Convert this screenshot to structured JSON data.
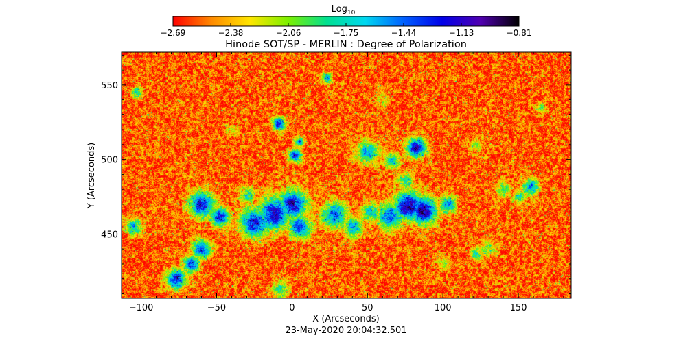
{
  "chart_data": {
    "type": "heatmap",
    "title": "Hinode SOT/SP - MERLIN : Degree of Polarization",
    "colorbar": {
      "label": "Log",
      "label_subscript": "10",
      "ticks": [
        "-2.69",
        "-2.38",
        "-2.06",
        "-1.75",
        "-1.44",
        "-1.13",
        "-0.81"
      ],
      "range": [
        -2.69,
        -0.81
      ],
      "colors": [
        "#ff0000",
        "#ff8a00",
        "#ffe600",
        "#7cf000",
        "#00e090",
        "#00d8f0",
        "#0060ff",
        "#0000e8",
        "#5000b0",
        "#000000"
      ]
    },
    "xlabel": "X (Arcseconds)",
    "ylabel": "Y (Arcseconds)",
    "xlim": [
      -113,
      185
    ],
    "ylim": [
      407,
      572
    ],
    "x_ticks": [
      -100,
      -50,
      0,
      50,
      100,
      150
    ],
    "y_ticks": [
      450,
      500,
      550
    ],
    "x_tick_labels": [
      "−100",
      "−50",
      "0",
      "50",
      "100",
      "150"
    ],
    "y_tick_labels": [
      "450",
      "500",
      "550"
    ],
    "grid": false,
    "timestamp": "23-May-2020 20:04:32.501",
    "field": {
      "background_level": -2.55,
      "regions": [
        {
          "x": -60,
          "y": 470,
          "r": 8,
          "peak": -1.25
        },
        {
          "x": -48,
          "y": 462,
          "r": 6,
          "peak": -1.3
        },
        {
          "x": -30,
          "y": 476,
          "r": 5,
          "peak": -1.8
        },
        {
          "x": -25,
          "y": 458,
          "r": 9,
          "peak": -1.2
        },
        {
          "x": -12,
          "y": 464,
          "r": 10,
          "peak": -1.1
        },
        {
          "x": 0,
          "y": 470,
          "r": 9,
          "peak": -1.15
        },
        {
          "x": 5,
          "y": 455,
          "r": 7,
          "peak": -1.3
        },
        {
          "x": 28,
          "y": 463,
          "r": 8,
          "peak": -1.4
        },
        {
          "x": 40,
          "y": 455,
          "r": 6,
          "peak": -1.6
        },
        {
          "x": 52,
          "y": 465,
          "r": 6,
          "peak": -1.7
        },
        {
          "x": 65,
          "y": 462,
          "r": 8,
          "peak": -1.4
        },
        {
          "x": 77,
          "y": 469,
          "r": 9,
          "peak": -1.0
        },
        {
          "x": 87,
          "y": 466,
          "r": 8,
          "peak": -1.0
        },
        {
          "x": 103,
          "y": 470,
          "r": 5,
          "peak": -1.45
        },
        {
          "x": 50,
          "y": 505,
          "r": 7,
          "peak": -1.6
        },
        {
          "x": 66,
          "y": 499,
          "r": 5,
          "peak": -1.7
        },
        {
          "x": 75,
          "y": 486,
          "r": 5,
          "peak": -1.9
        },
        {
          "x": 82,
          "y": 508,
          "r": 6,
          "peak": -1.1
        },
        {
          "x": 2,
          "y": 503,
          "r": 4,
          "peak": -1.3
        },
        {
          "x": 5,
          "y": 512,
          "r": 3,
          "peak": -1.5
        },
        {
          "x": -9,
          "y": 524,
          "r": 4,
          "peak": -1.2
        },
        {
          "x": -105,
          "y": 455,
          "r": 5,
          "peak": -1.6
        },
        {
          "x": -60,
          "y": 440,
          "r": 6,
          "peak": -1.4
        },
        {
          "x": -67,
          "y": 430,
          "r": 5,
          "peak": -1.3
        },
        {
          "x": -77,
          "y": 420,
          "r": 6,
          "peak": -1.2
        },
        {
          "x": -8,
          "y": 413,
          "r": 5,
          "peak": -1.8
        },
        {
          "x": 122,
          "y": 510,
          "r": 4,
          "peak": -2.0
        },
        {
          "x": 140,
          "y": 480,
          "r": 5,
          "peak": -2.0
        },
        {
          "x": 158,
          "y": 482,
          "r": 5,
          "peak": -1.5
        },
        {
          "x": 150,
          "y": 475,
          "r": 4,
          "peak": -1.8
        },
        {
          "x": 130,
          "y": 440,
          "r": 5,
          "peak": -2.0
        },
        {
          "x": 122,
          "y": 437,
          "r": 4,
          "peak": -1.9
        },
        {
          "x": -103,
          "y": 545,
          "r": 3,
          "peak": -1.7
        },
        {
          "x": 23,
          "y": 555,
          "r": 3,
          "peak": -1.6
        },
        {
          "x": 100,
          "y": 430,
          "r": 4,
          "peak": -2.1
        },
        {
          "x": 165,
          "y": 535,
          "r": 3,
          "peak": -2.0
        },
        {
          "x": 60,
          "y": 540,
          "r": 4,
          "peak": -2.2
        },
        {
          "x": -40,
          "y": 520,
          "r": 4,
          "peak": -2.2
        }
      ]
    }
  }
}
